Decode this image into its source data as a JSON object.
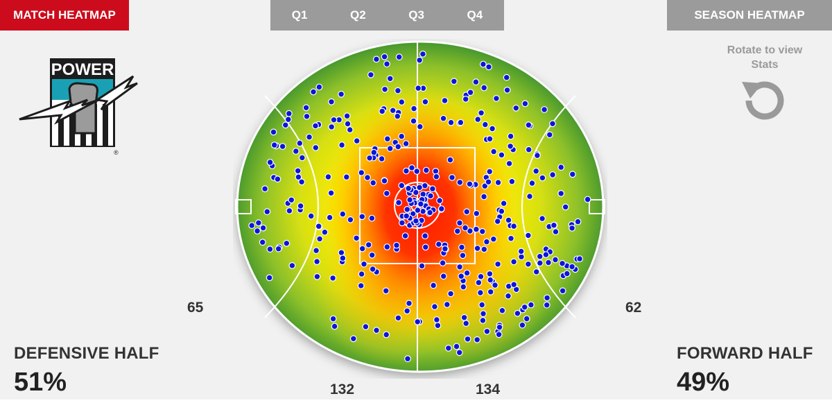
{
  "header": {
    "match_heatmap_label": "MATCH HEATMAP",
    "season_heatmap_label": "SEASON HEATMAP",
    "quarters": [
      "Q1",
      "Q2",
      "Q3",
      "Q4"
    ]
  },
  "rotate_hint": {
    "text": "Rotate to view\nStats",
    "icon": "rotate-icon"
  },
  "logo": {
    "text": "POWER",
    "icon": "power-fist-icon"
  },
  "stats": {
    "defensive_top": "65",
    "defensive_bottom": "132",
    "forward_top": "62",
    "forward_bottom": "134"
  },
  "defensive": {
    "label": "DEFENSIVE HALF",
    "percent": "51%"
  },
  "forward": {
    "label": "FORWARD HALF",
    "percent": "49%"
  },
  "colors": {
    "accent_red": "#cc0c1c",
    "tab_gray": "#9b9b9b",
    "dot_blue": "#0c16d8",
    "heat_hot": "#ff1a00",
    "heat_warm": "#ffee00",
    "heat_cool": "#2f8a2f"
  }
}
